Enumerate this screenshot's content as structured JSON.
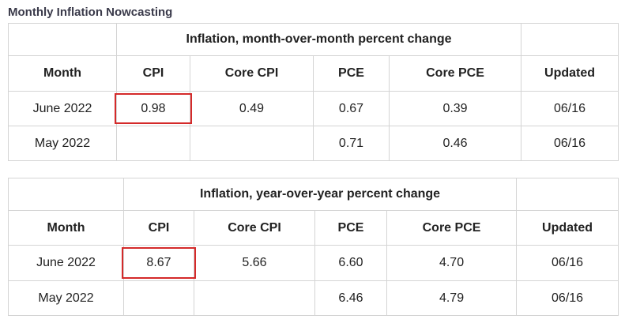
{
  "page": {
    "title": "Monthly Inflation Nowcasting"
  },
  "mom": {
    "banner": "Inflation, month-over-month percent change",
    "headers": [
      "Month",
      "CPI",
      "Core CPI",
      "PCE",
      "Core PCE",
      "Updated"
    ],
    "rows": [
      [
        "June 2022",
        "0.98",
        "0.49",
        "0.67",
        "0.39",
        "06/16"
      ],
      [
        "May 2022",
        "",
        "",
        "0.71",
        "0.46",
        "06/16"
      ]
    ],
    "highlight_cell": "June 2022 CPI"
  },
  "yoy": {
    "banner": "Inflation, year-over-year percent change",
    "headers": [
      "Month",
      "CPI",
      "Core CPI",
      "PCE",
      "Core PCE",
      "Updated"
    ],
    "rows": [
      [
        "June 2022",
        "8.67",
        "5.66",
        "6.60",
        "4.70",
        "06/16"
      ],
      [
        "May 2022",
        "",
        "",
        "6.46",
        "4.79",
        "06/16"
      ]
    ],
    "highlight_cell": "June 2022 CPI"
  },
  "colors": {
    "highlight": "#d42a2a",
    "border": "#d4d4d4",
    "title": "#3a3a4a"
  }
}
